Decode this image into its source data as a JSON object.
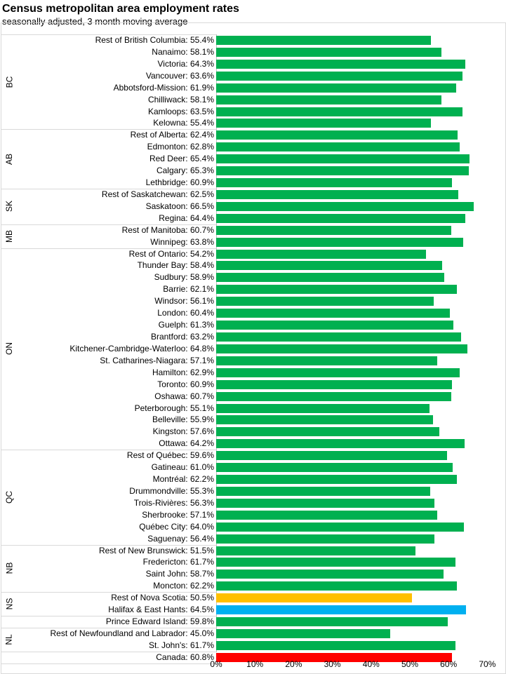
{
  "chart_data": {
    "type": "bar",
    "orientation": "horizontal",
    "title": "Census metropolitan area employment rates",
    "subtitle": "seasonally adjusted, 3 month moving average",
    "xlim": [
      0,
      70
    ],
    "xticks": [
      "0%",
      "10%",
      "20%",
      "30%",
      "40%",
      "50%",
      "60%",
      "70%"
    ],
    "colors": {
      "default": "#00b050",
      "Rest of Nova Scotia": "#ffc000",
      "Halifax & East Hants": "#00b0f0",
      "Canada": "#ff0000"
    },
    "groups": [
      {
        "name": "BC",
        "items": [
          [
            "Rest of British Columbia",
            55.4
          ],
          [
            "Nanaimo",
            58.1
          ],
          [
            "Victoria",
            64.3
          ],
          [
            "Vancouver",
            63.6
          ],
          [
            "Abbotsford-Mission",
            61.9
          ],
          [
            "Chilliwack",
            58.1
          ],
          [
            "Kamloops",
            63.5
          ],
          [
            "Kelowna",
            55.4
          ]
        ]
      },
      {
        "name": "AB",
        "items": [
          [
            "Rest of Alberta",
            62.4
          ],
          [
            "Edmonton",
            62.8
          ],
          [
            "Red Deer",
            65.4
          ],
          [
            "Calgary",
            65.3
          ],
          [
            "Lethbridge",
            60.9
          ]
        ]
      },
      {
        "name": "SK",
        "items": [
          [
            "Rest of Saskatchewan",
            62.5
          ],
          [
            "Saskatoon",
            66.5
          ],
          [
            "Regina",
            64.4
          ]
        ]
      },
      {
        "name": "MB",
        "items": [
          [
            "Rest of Manitoba",
            60.7
          ],
          [
            "Winnipeg",
            63.8
          ]
        ]
      },
      {
        "name": "ON",
        "items": [
          [
            "Rest of Ontario",
            54.2
          ],
          [
            "Thunder Bay",
            58.4
          ],
          [
            "Sudbury",
            58.9
          ],
          [
            "Barrie",
            62.1
          ],
          [
            "Windsor",
            56.1
          ],
          [
            "London",
            60.4
          ],
          [
            "Guelph",
            61.3
          ],
          [
            "Brantford",
            63.2
          ],
          [
            "Kitchener-Cambridge-Waterloo",
            64.8
          ],
          [
            "St. Catharines-Niagara",
            57.1
          ],
          [
            "Hamilton",
            62.9
          ],
          [
            "Toronto",
            60.9
          ],
          [
            "Oshawa",
            60.7
          ],
          [
            "Peterborough",
            55.1
          ],
          [
            "Belleville",
            55.9
          ],
          [
            "Kingston",
            57.6
          ],
          [
            "Ottawa",
            64.2
          ]
        ]
      },
      {
        "name": "QC",
        "items": [
          [
            "Rest of Québec",
            59.6
          ],
          [
            "Gatineau",
            61.0
          ],
          [
            "Montréal",
            62.2
          ],
          [
            "Drummondville",
            55.3
          ],
          [
            "Trois-Rivières",
            56.3
          ],
          [
            "Sherbrooke",
            57.1
          ],
          [
            "Québec City",
            64.0
          ],
          [
            "Saguenay",
            56.4
          ]
        ]
      },
      {
        "name": "NB",
        "items": [
          [
            "Rest of New Brunswick",
            51.5
          ],
          [
            "Fredericton",
            61.7
          ],
          [
            "Saint John",
            58.7
          ],
          [
            "Moncton",
            62.2
          ]
        ]
      },
      {
        "name": "NS",
        "items": [
          [
            "Rest of Nova Scotia",
            50.5
          ],
          [
            "Halifax & East Hants",
            64.5
          ]
        ]
      },
      {
        "name": "",
        "items": [
          [
            "Prince Edward Island",
            59.8
          ]
        ]
      },
      {
        "name": "NL",
        "items": [
          [
            "Rest of Newfoundland and Labrador",
            45.0
          ],
          [
            "St. John's",
            61.7
          ]
        ]
      },
      {
        "name": "",
        "items": [
          [
            "Canada",
            60.8
          ]
        ]
      }
    ]
  }
}
